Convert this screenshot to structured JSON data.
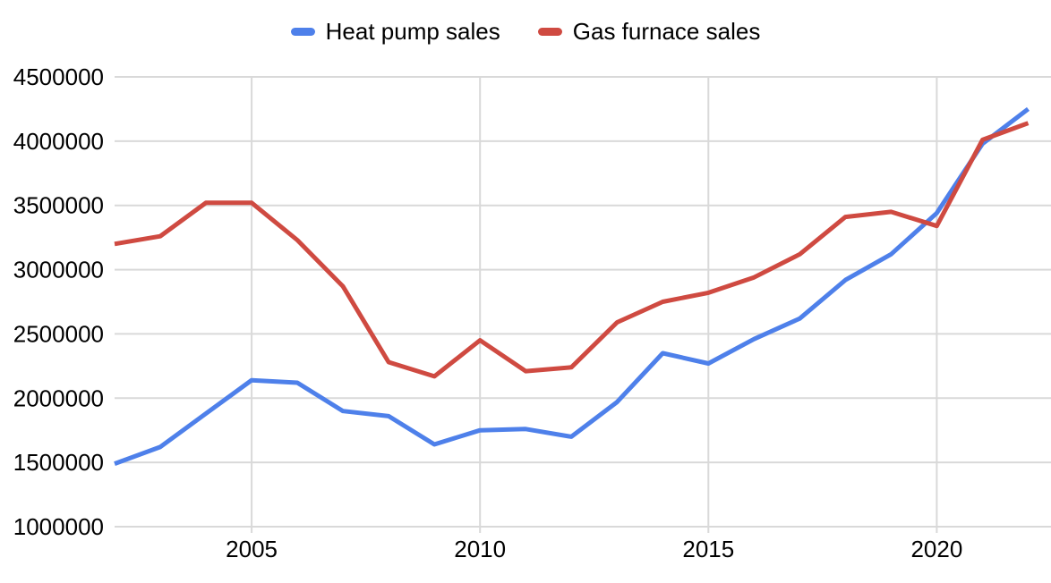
{
  "legend": [
    {
      "label": "Heat pump sales",
      "color": "#4e80ea"
    },
    {
      "label": "Gas furnace sales",
      "color": "#cf4a41"
    }
  ],
  "chart_data": {
    "type": "line",
    "title": "",
    "xlabel": "",
    "ylabel": "",
    "x": [
      2002,
      2003,
      2004,
      2005,
      2006,
      2007,
      2008,
      2009,
      2010,
      2011,
      2012,
      2013,
      2014,
      2015,
      2016,
      2017,
      2018,
      2019,
      2020,
      2021,
      2022
    ],
    "series": [
      {
        "name": "Heat pump sales",
        "color": "#4e80ea",
        "values": [
          1490000,
          1620000,
          1880000,
          2140000,
          2120000,
          1900000,
          1860000,
          1640000,
          1750000,
          1760000,
          1700000,
          1970000,
          2350000,
          2270000,
          2460000,
          2620000,
          2920000,
          3120000,
          3440000,
          3980000,
          4250000
        ]
      },
      {
        "name": "Gas furnace sales",
        "color": "#cf4a41",
        "values": [
          3200000,
          3260000,
          3520000,
          3520000,
          3230000,
          2870000,
          2280000,
          2170000,
          2450000,
          2210000,
          2240000,
          2590000,
          2750000,
          2820000,
          2940000,
          3120000,
          3410000,
          3450000,
          3340000,
          4010000,
          4140000
        ]
      }
    ],
    "xlim": [
      2002,
      2022.5
    ],
    "ylim": [
      1000000,
      4500000
    ],
    "x_ticks": [
      2005,
      2010,
      2015,
      2020
    ],
    "x_tick_labels": [
      "2005",
      "2010",
      "2015",
      "2020"
    ],
    "y_ticks": [
      1000000,
      1500000,
      2000000,
      2500000,
      3000000,
      3500000,
      4000000,
      4500000
    ],
    "y_tick_labels": [
      "1000000",
      "1500000",
      "2000000",
      "2500000",
      "3000000",
      "3500000",
      "4000000",
      "4500000"
    ],
    "grid": true,
    "gridline_color": "#d9d9d9",
    "text_color": "#000000",
    "background": "#ffffff",
    "legend_position": "top"
  }
}
